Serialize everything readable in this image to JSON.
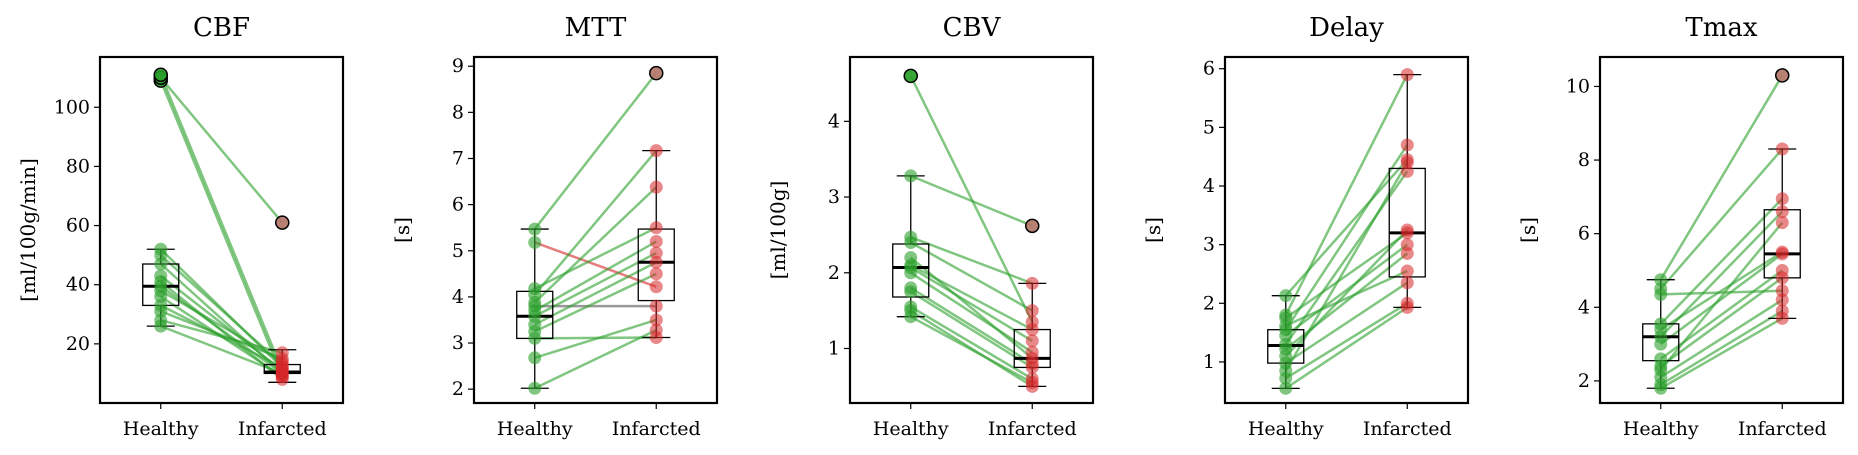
{
  "charts_style": {
    "healthy_color": "#2ca02c",
    "infarcted_color": "#d62728",
    "outlier_fill": "#b08070",
    "increase_line_color": "#2ca02c",
    "decrease_line_color": "#d62728",
    "flat_line_color": "#555555"
  },
  "chart_data": [
    {
      "type": "box+paired-scatter",
      "title": "CBF",
      "ylabel": "[ml/100g/min]",
      "categories": [
        "Healthy",
        "Infarcted"
      ],
      "ylim": [
        0,
        117
      ],
      "yticks": [
        20,
        40,
        60,
        80,
        100
      ],
      "boxes": [
        {
          "category": "Healthy",
          "q1": 33,
          "median": 39.5,
          "q3": 47,
          "whisker_low": 26,
          "whisker_high": 52
        },
        {
          "category": "Infarcted",
          "q1": 10,
          "median": 10.5,
          "q3": 13,
          "whisker_low": 7,
          "whisker_high": 18
        }
      ],
      "pairs": [
        [
          110,
          61
        ],
        [
          111,
          11
        ],
        [
          109,
          9
        ],
        [
          52,
          12
        ],
        [
          50,
          13
        ],
        [
          47,
          10
        ],
        [
          43,
          11
        ],
        [
          41,
          8
        ],
        [
          39.5,
          10
        ],
        [
          38,
          14
        ],
        [
          36,
          9
        ],
        [
          33,
          12
        ],
        [
          31,
          15
        ],
        [
          28,
          17
        ],
        [
          26,
          10
        ]
      ],
      "outliers": {
        "Healthy": [
          109,
          110,
          111
        ],
        "Infarcted": [
          61
        ]
      }
    },
    {
      "type": "box+paired-scatter",
      "title": "MTT",
      "ylabel": "[s]",
      "categories": [
        "Healthy",
        "Infarcted"
      ],
      "ylim": [
        1.7,
        9.2
      ],
      "yticks": [
        2,
        3,
        4,
        5,
        6,
        7,
        8,
        9
      ],
      "boxes": [
        {
          "category": "Healthy",
          "q1": 3.1,
          "median": 3.58,
          "q3": 4.12,
          "whisker_low": 2.02,
          "whisker_high": 5.47
        },
        {
          "category": "Infarcted",
          "q1": 3.92,
          "median": 4.75,
          "q3": 5.47,
          "whisker_low": 3.12,
          "whisker_high": 7.17
        }
      ],
      "pairs": [
        [
          5.47,
          8.85
        ],
        [
          5.18,
          4.22
        ],
        [
          4.18,
          5.5
        ],
        [
          4.05,
          7.17
        ],
        [
          3.88,
          6.38
        ],
        [
          3.8,
          3.8
        ],
        [
          3.7,
          5.2
        ],
        [
          3.58,
          4.95
        ],
        [
          3.4,
          4.75
        ],
        [
          3.25,
          4.5
        ],
        [
          3.1,
          3.12
        ],
        [
          2.68,
          3.5
        ],
        [
          2.02,
          3.28
        ]
      ],
      "outliers": {
        "Healthy": [],
        "Infarcted": [
          8.85
        ]
      }
    },
    {
      "type": "box+paired-scatter",
      "title": "CBV",
      "ylabel": "[ml/100g]",
      "categories": [
        "Healthy",
        "Infarcted"
      ],
      "ylim": [
        0.28,
        4.85
      ],
      "yticks": [
        1,
        2,
        3,
        4
      ],
      "boxes": [
        {
          "category": "Healthy",
          "q1": 1.68,
          "median": 2.07,
          "q3": 2.38,
          "whisker_low": 1.42,
          "whisker_high": 3.28
        },
        {
          "category": "Infarcted",
          "q1": 0.75,
          "median": 0.87,
          "q3": 1.25,
          "whisker_low": 0.5,
          "whisker_high": 1.86
        }
      ],
      "pairs": [
        [
          4.6,
          1.35
        ],
        [
          3.28,
          2.62
        ],
        [
          2.47,
          1.86
        ],
        [
          2.4,
          1.5
        ],
        [
          2.2,
          0.87
        ],
        [
          2.1,
          1.25
        ],
        [
          2.07,
          1.1
        ],
        [
          2.0,
          0.95
        ],
        [
          1.8,
          0.8
        ],
        [
          1.75,
          0.75
        ],
        [
          1.55,
          0.6
        ],
        [
          1.5,
          0.5
        ],
        [
          1.42,
          0.55
        ]
      ],
      "outliers": {
        "Healthy": [
          4.6
        ],
        "Infarcted": [
          2.62
        ]
      }
    },
    {
      "type": "box+paired-scatter",
      "title": "Delay",
      "ylabel": "[s]",
      "categories": [
        "Healthy",
        "Infarcted"
      ],
      "ylim": [
        0.3,
        6.2
      ],
      "yticks": [
        1,
        2,
        3,
        4,
        5,
        6
      ],
      "boxes": [
        {
          "category": "Healthy",
          "q1": 0.98,
          "median": 1.28,
          "q3": 1.55,
          "whisker_low": 0.55,
          "whisker_high": 2.13
        },
        {
          "category": "Infarcted",
          "q1": 2.45,
          "median": 3.2,
          "q3": 4.3,
          "whisker_low": 1.93,
          "whisker_high": 5.9
        }
      ],
      "pairs": [
        [
          2.13,
          4.45
        ],
        [
          1.8,
          5.9
        ],
        [
          1.75,
          3.2
        ],
        [
          1.62,
          2.55
        ],
        [
          1.55,
          4.7
        ],
        [
          1.45,
          3.0
        ],
        [
          1.3,
          4.25
        ],
        [
          1.22,
          2.85
        ],
        [
          1.1,
          3.25
        ],
        [
          0.98,
          2.35
        ],
        [
          0.85,
          4.4
        ],
        [
          0.72,
          2.0
        ],
        [
          0.55,
          1.93
        ]
      ],
      "outliers": {
        "Healthy": [],
        "Infarcted": []
      }
    },
    {
      "type": "box+paired-scatter",
      "title": "Tmax",
      "ylabel": "[s]",
      "categories": [
        "Healthy",
        "Infarcted"
      ],
      "ylim": [
        1.4,
        10.8
      ],
      "yticks": [
        2,
        4,
        6,
        8,
        10
      ],
      "boxes": [
        {
          "category": "Healthy",
          "q1": 2.55,
          "median": 3.2,
          "q3": 3.55,
          "whisker_low": 1.8,
          "whisker_high": 4.75
        },
        {
          "category": "Infarcted",
          "q1": 4.8,
          "median": 5.45,
          "q3": 6.65,
          "whisker_low": 3.7,
          "whisker_high": 8.3
        }
      ],
      "pairs": [
        [
          4.75,
          10.3
        ],
        [
          4.5,
          8.3
        ],
        [
          4.35,
          4.45
        ],
        [
          3.55,
          6.95
        ],
        [
          3.4,
          5.5
        ],
        [
          3.2,
          6.6
        ],
        [
          3.0,
          5.45
        ],
        [
          2.6,
          5.0
        ],
        [
          2.4,
          4.8
        ],
        [
          2.3,
          6.3
        ],
        [
          2.1,
          4.2
        ],
        [
          1.9,
          3.9
        ],
        [
          1.8,
          3.7
        ]
      ],
      "outliers": {
        "Healthy": [],
        "Infarcted": [
          10.3
        ]
      }
    }
  ]
}
